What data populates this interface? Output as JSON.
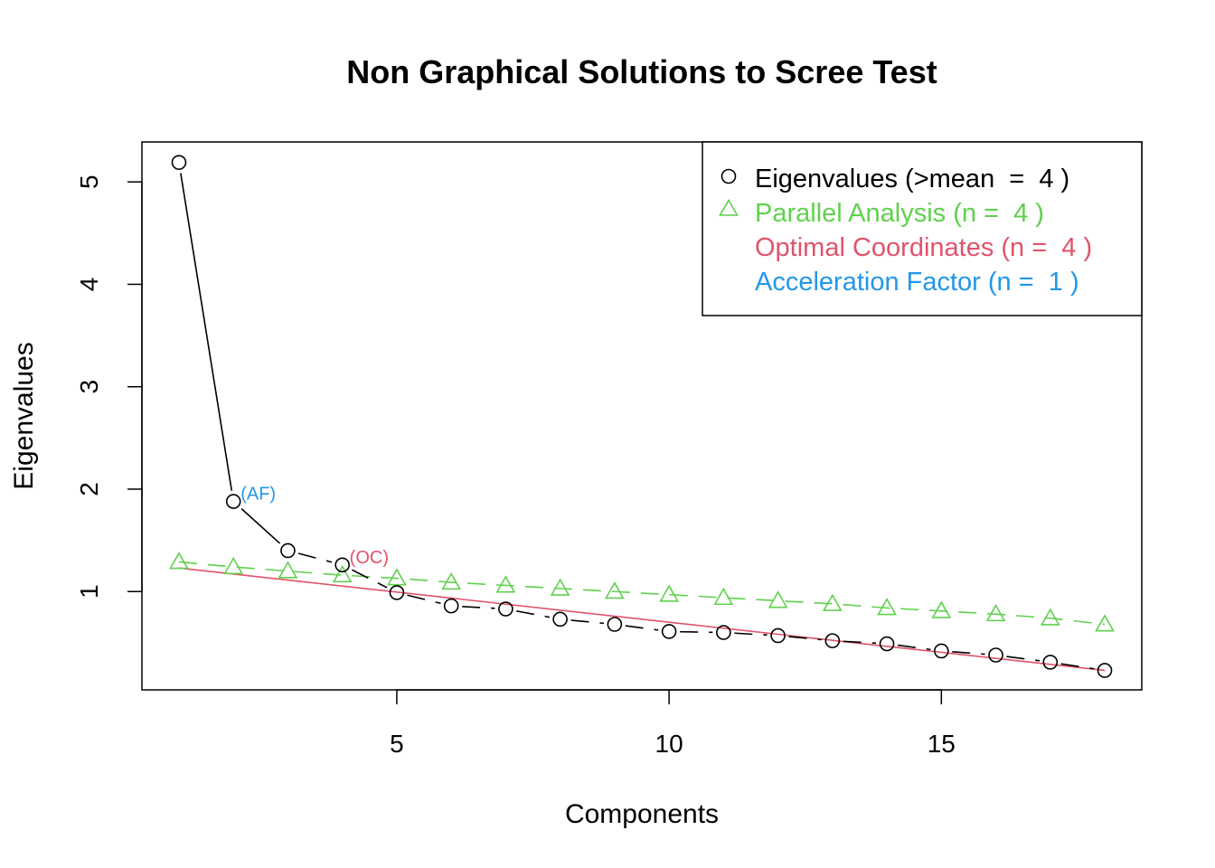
{
  "chart_data": {
    "type": "line",
    "title": "Non Graphical Solutions to Scree Test",
    "xlabel": "Components",
    "ylabel": "Eigenvalues",
    "xlim": [
      0.32,
      18.68
    ],
    "ylim": [
      0.04,
      5.39
    ],
    "x_ticks": [
      5,
      10,
      15
    ],
    "y_ticks": [
      1,
      2,
      3,
      4,
      5
    ],
    "grid": false,
    "legend_position": "top-right",
    "x": [
      1,
      2,
      3,
      4,
      5,
      6,
      7,
      8,
      9,
      10,
      11,
      12,
      13,
      14,
      15,
      16,
      17,
      18
    ],
    "series": [
      {
        "key": "eigen",
        "name": "Eigenvalues (>mean  =  4 )",
        "color": "#000000",
        "marker": "circle",
        "values": [
          5.19,
          1.88,
          1.4,
          1.26,
          0.99,
          0.86,
          0.83,
          0.73,
          0.68,
          0.61,
          0.6,
          0.57,
          0.52,
          0.49,
          0.42,
          0.38,
          0.31,
          0.23
        ]
      },
      {
        "key": "parallel",
        "name": "Parallel Analysis (n =  4 )",
        "color": "#61D04F",
        "marker": "triangle",
        "values": [
          1.29,
          1.24,
          1.2,
          1.16,
          1.13,
          1.09,
          1.06,
          1.03,
          1.0,
          0.97,
          0.94,
          0.91,
          0.88,
          0.84,
          0.81,
          0.78,
          0.74,
          0.68
        ]
      },
      {
        "key": "oc",
        "name": "Optimal Coordinates (n =  4 )",
        "color": "#DF536B",
        "marker": "none"
      },
      {
        "key": "af",
        "name": "Acceleration Factor (n =  1 )",
        "color": "#2297E6",
        "marker": "none"
      }
    ],
    "oc_line": {
      "x": [
        1,
        18
      ],
      "y": [
        1.23,
        0.23
      ]
    },
    "annotations": [
      {
        "text": "(AF)",
        "x": 2,
        "y": 1.88,
        "color": "#2297E6"
      },
      {
        "text": "(OC)",
        "x": 4,
        "y": 1.26,
        "color": "#DF536B"
      }
    ]
  }
}
